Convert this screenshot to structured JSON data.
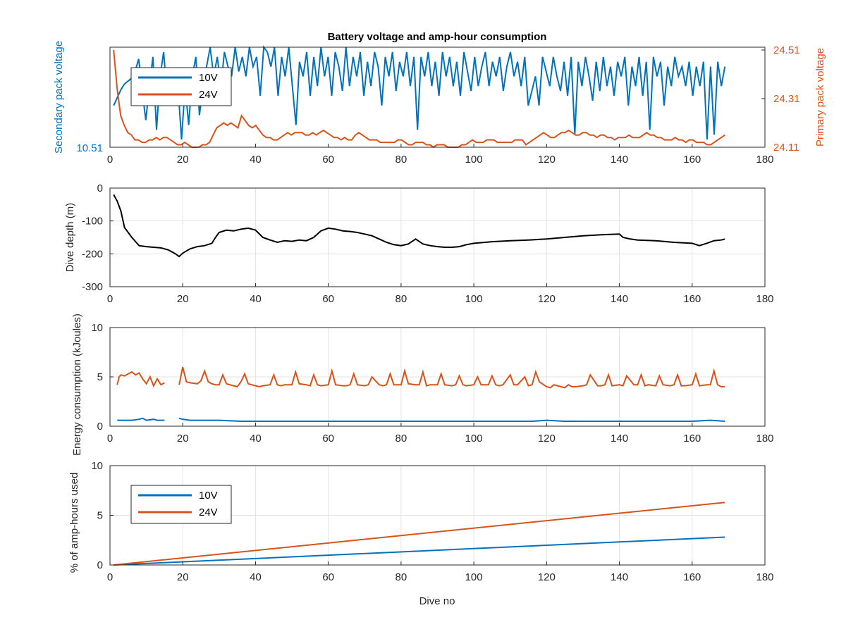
{
  "figure": {
    "title": "Battery voltage and amp-hour consumption"
  },
  "colors": {
    "blue": "#0072BD",
    "orange": "#D95319",
    "black": "#000000",
    "grid": "#e3e3e3"
  },
  "chart_data": [
    {
      "type": "line",
      "title": "Battery voltage and amp-hour consumption",
      "xlabel": "",
      "ylabel_left": "Secondary pack voltage",
      "ylabel_right": "Primary pack voltage",
      "xlim": [
        0,
        180
      ],
      "xticks": [
        "0",
        "20",
        "40",
        "60",
        "80",
        "100",
        "120",
        "140",
        "160",
        "180"
      ],
      "yticks_left": [
        "10.51"
      ],
      "yticks_right": [
        "24.51",
        "24.31",
        "24.11"
      ],
      "legend": {
        "position": "top-left",
        "entries": [
          "10V",
          "24V"
        ]
      },
      "grid": false,
      "series": [
        {
          "name": "10V",
          "axis": "left",
          "color": "#0072BD",
          "y_norm": [
            0.4,
            0.48,
            0.56,
            0.62,
            0.65,
            0.68,
            0.75,
            0.88,
            0.55,
            0.25,
            0.6,
            0.9,
            0.15,
            0.7,
            0.95,
            0.5,
            0.4,
            0.7,
            0.6,
            0.05,
            0.6,
            0.2,
            0.7,
            0.9,
            0.3,
            0.6,
            0.8,
            1.0,
            0.7,
            0.9,
            0.6,
            0.95,
            0.8,
            0.7,
            1.0,
            0.75,
            0.9,
            0.7,
            1.0,
            0.8,
            0.9,
            0.5,
            1.0,
            0.95,
            0.8,
            1.0,
            0.5,
            0.9,
            0.7,
            1.0,
            0.6,
            0.2,
            0.85,
            0.7,
            0.95,
            0.5,
            0.9,
            0.6,
            1.0,
            0.7,
            0.9,
            0.5,
            0.95,
            0.8,
            0.55,
            1.0,
            0.6,
            0.9,
            0.7,
            0.95,
            0.5,
            0.85,
            0.6,
            0.95,
            0.8,
            0.4,
            0.9,
            0.7,
            0.95,
            0.55,
            0.85,
            0.7,
            0.95,
            0.6,
            0.9,
            0.15,
            0.9,
            0.7,
            0.95,
            0.6,
            0.85,
            0.5,
            0.95,
            0.7,
            0.9,
            0.6,
            0.85,
            0.5,
            0.95,
            0.75,
            0.55,
            0.9,
            0.6,
            0.8,
            0.95,
            0.6,
            0.85,
            0.7,
            0.9,
            0.55,
            0.8,
            0.95,
            0.7,
            0.85,
            0.6,
            0.9,
            0.4,
            0.55,
            0.7,
            0.4,
            0.9,
            0.75,
            0.6,
            0.9,
            0.7,
            0.55,
            0.85,
            0.5,
            0.9,
            0.1,
            0.85,
            0.6,
            0.9,
            0.7,
            0.45,
            0.85,
            0.55,
            0.9,
            0.6,
            0.8,
            0.5,
            0.85,
            0.7,
            0.9,
            0.4,
            0.8,
            0.6,
            0.9,
            0.5,
            0.85,
            0.15,
            0.9,
            0.7,
            0.85,
            0.4,
            0.8,
            0.6,
            0.9,
            0.7,
            0.8,
            0.6,
            0.85,
            0.5,
            0.8,
            0.6,
            0.85,
            0.05,
            0.8,
            0.1,
            0.85,
            0.6,
            0.8
          ]
        },
        {
          "name": "24V",
          "axis": "right",
          "color": "#D95319",
          "y": [
            24.51,
            24.35,
            24.24,
            24.2,
            24.17,
            24.16,
            24.14,
            24.14,
            24.13,
            24.13,
            24.14,
            24.14,
            24.15,
            24.14,
            24.15,
            24.15,
            24.14,
            24.13,
            24.12,
            24.12,
            24.13,
            24.12,
            24.11,
            24.11,
            24.11,
            24.12,
            24.12,
            24.13,
            24.16,
            24.19,
            24.2,
            24.21,
            24.2,
            24.21,
            24.2,
            24.19,
            24.24,
            24.22,
            24.2,
            24.19,
            24.2,
            24.18,
            24.16,
            24.15,
            24.15,
            24.14,
            24.14,
            24.15,
            24.16,
            24.17,
            24.16,
            24.17,
            24.17,
            24.17,
            24.16,
            24.16,
            24.17,
            24.16,
            24.17,
            24.18,
            24.17,
            24.16,
            24.15,
            24.15,
            24.14,
            24.15,
            24.14,
            24.14,
            24.16,
            24.17,
            24.16,
            24.15,
            24.14,
            24.14,
            24.14,
            24.13,
            24.13,
            24.13,
            24.13,
            24.13,
            24.14,
            24.14,
            24.13,
            24.12,
            24.12,
            24.13,
            24.13,
            24.13,
            24.12,
            24.12,
            24.11,
            24.12,
            24.12,
            24.12,
            24.11,
            24.11,
            24.11,
            24.11,
            24.12,
            24.12,
            24.13,
            24.14,
            24.13,
            24.13,
            24.13,
            24.14,
            24.14,
            24.14,
            24.13,
            24.13,
            24.13,
            24.13,
            24.13,
            24.14,
            24.14,
            24.14,
            24.12,
            24.13,
            24.14,
            24.15,
            24.16,
            24.17,
            24.16,
            24.15,
            24.15,
            24.16,
            24.17,
            24.17,
            24.18,
            24.17,
            24.16,
            24.16,
            24.17,
            24.17,
            24.16,
            24.16,
            24.15,
            24.16,
            24.16,
            24.15,
            24.15,
            24.14,
            24.15,
            24.15,
            24.15,
            24.16,
            24.15,
            24.15,
            24.15,
            24.16,
            24.17,
            24.16,
            24.16,
            24.15,
            24.15,
            24.14,
            24.14,
            24.14,
            24.15,
            24.14,
            24.14,
            24.13,
            24.14,
            24.14,
            24.13,
            24.13,
            24.13,
            24.12,
            24.12,
            24.13,
            24.14,
            24.15,
            24.16
          ]
        }
      ]
    },
    {
      "type": "line",
      "title": "",
      "xlabel": "",
      "ylabel": "Dive depth (m)",
      "xlim": [
        0,
        180
      ],
      "ylim": [
        0,
        300
      ],
      "y_reversed": true,
      "xticks": [
        "0",
        "20",
        "40",
        "60",
        "80",
        "100",
        "120",
        "140",
        "160",
        "180"
      ],
      "yticks": [
        "0",
        "100",
        "200",
        "300"
      ],
      "grid": true,
      "series": [
        {
          "name": "",
          "color": "#000000",
          "x": [
            1,
            2,
            3,
            4,
            6,
            8,
            10,
            12,
            14,
            16,
            18,
            19,
            20,
            22,
            24,
            26,
            28,
            29,
            30,
            32,
            34,
            36,
            38,
            40,
            42,
            44,
            46,
            48,
            50,
            52,
            54,
            56,
            58,
            60,
            62,
            64,
            66,
            68,
            70,
            72,
            74,
            76,
            78,
            80,
            82,
            84,
            86,
            88,
            90,
            92,
            94,
            96,
            98,
            100,
            105,
            110,
            115,
            120,
            125,
            130,
            135,
            140,
            141,
            143,
            145,
            150,
            155,
            160,
            162,
            164,
            166,
            168,
            169
          ],
          "y": [
            20,
            40,
            70,
            120,
            150,
            175,
            178,
            180,
            182,
            188,
            200,
            208,
            198,
            185,
            178,
            175,
            168,
            150,
            135,
            128,
            130,
            125,
            122,
            128,
            150,
            158,
            165,
            160,
            162,
            158,
            160,
            150,
            130,
            122,
            125,
            130,
            132,
            135,
            140,
            145,
            155,
            165,
            172,
            175,
            170,
            155,
            170,
            175,
            178,
            180,
            180,
            178,
            172,
            168,
            163,
            160,
            158,
            155,
            150,
            145,
            142,
            140,
            150,
            155,
            158,
            160,
            165,
            168,
            175,
            168,
            160,
            158,
            155
          ]
        }
      ]
    },
    {
      "type": "line",
      "title": "",
      "xlabel": "",
      "ylabel": "Energy consumption (kJoules)",
      "xlim": [
        0,
        180
      ],
      "ylim": [
        0,
        10
      ],
      "xticks": [
        "0",
        "20",
        "40",
        "60",
        "80",
        "100",
        "120",
        "140",
        "160",
        "180"
      ],
      "yticks": [
        "0",
        "5",
        "10"
      ],
      "grid": true,
      "series": [
        {
          "name": "24V",
          "color": "#D95319",
          "segments": [
            {
              "x": [
                2,
                2.5,
                3,
                4,
                5,
                6,
                7,
                8,
                9,
                10,
                11,
                12,
                13,
                14,
                15
              ],
              "y": [
                4.2,
                5.0,
                5.2,
                5.1,
                5.3,
                5.5,
                5.2,
                5.4,
                4.8,
                4.3,
                5.0,
                4.1,
                4.8,
                4.2,
                4.4
              ]
            },
            {
              "x": [
                19,
                20,
                21,
                22,
                24,
                25,
                26,
                27,
                28,
                29,
                30,
                31,
                32,
                34,
                35,
                36,
                37,
                38,
                40,
                41,
                42,
                44,
                45,
                46,
                47,
                48,
                50,
                51,
                52,
                54,
                55,
                56,
                57,
                58,
                60,
                61,
                62,
                64,
                65,
                66,
                67,
                68,
                70,
                71,
                72,
                74,
                75,
                76,
                77,
                78,
                80,
                81,
                82,
                84,
                85,
                86,
                87,
                88,
                90,
                91,
                92,
                94,
                95,
                96,
                97,
                98,
                100,
                101,
                102,
                104,
                105,
                106,
                107,
                108,
                110,
                111,
                112,
                114,
                115,
                116,
                117,
                118,
                120,
                121,
                122,
                124,
                125,
                126,
                127,
                128,
                130,
                131,
                132,
                134,
                135,
                136,
                137,
                138,
                140,
                141,
                142,
                144,
                145,
                146,
                147,
                148,
                150,
                151,
                152,
                154,
                155,
                156,
                157,
                158,
                160,
                161,
                162,
                164,
                165,
                166,
                167,
                168,
                169
              ],
              "y": [
                4.2,
                6.0,
                4.5,
                4.4,
                4.3,
                4.6,
                5.6,
                4.5,
                4.3,
                4.2,
                4.2,
                5.2,
                4.3,
                4.1,
                4.0,
                4.5,
                5.3,
                4.3,
                4.1,
                4.0,
                4.1,
                4.2,
                5.2,
                4.2,
                4.1,
                4.2,
                4.2,
                5.5,
                4.3,
                4.2,
                4.1,
                5.2,
                4.2,
                4.1,
                4.2,
                5.6,
                4.2,
                4.1,
                4.1,
                4.2,
                5.3,
                4.2,
                4.1,
                4.2,
                5.0,
                4.2,
                4.1,
                4.2,
                5.3,
                4.2,
                4.2,
                5.6,
                4.3,
                4.2,
                4.2,
                5.5,
                4.1,
                4.2,
                4.2,
                5.3,
                4.2,
                4.1,
                4.2,
                5.1,
                4.2,
                4.1,
                4.2,
                5.0,
                4.2,
                4.2,
                5.1,
                4.2,
                4.1,
                4.2,
                5.2,
                4.2,
                4.2,
                5.0,
                4.1,
                4.2,
                5.5,
                4.5,
                4.0,
                3.9,
                4.2,
                4.0,
                3.9,
                4.2,
                4.0,
                4.0,
                4.1,
                4.2,
                5.2,
                4.1,
                4.1,
                4.2,
                5.2,
                4.1,
                4.2,
                4.1,
                5.1,
                4.2,
                4.2,
                5.2,
                4.1,
                4.2,
                4.1,
                5.1,
                4.2,
                4.1,
                4.2,
                5.2,
                4.1,
                4.1,
                4.2,
                5.3,
                4.1,
                4.2,
                4.2,
                5.6,
                4.2,
                4.0,
                4.0
              ]
            }
          ]
        },
        {
          "name": "10V",
          "color": "#0072BD",
          "segments": [
            {
              "x": [
                2,
                4,
                6,
                8,
                9,
                10,
                12,
                13,
                14,
                15
              ],
              "y": [
                0.6,
                0.6,
                0.6,
                0.7,
                0.8,
                0.6,
                0.7,
                0.6,
                0.6,
                0.6
              ]
            },
            {
              "x": [
                19,
                20,
                22,
                24,
                26,
                30,
                36,
                40,
                50,
                60,
                70,
                80,
                90,
                100,
                110,
                116,
                120,
                125,
                130,
                140,
                150,
                160,
                165,
                169
              ],
              "y": [
                0.8,
                0.7,
                0.6,
                0.6,
                0.6,
                0.6,
                0.5,
                0.5,
                0.5,
                0.5,
                0.5,
                0.5,
                0.5,
                0.5,
                0.5,
                0.5,
                0.6,
                0.5,
                0.5,
                0.5,
                0.5,
                0.5,
                0.6,
                0.5
              ]
            }
          ]
        }
      ]
    },
    {
      "type": "line",
      "title": "",
      "xlabel": "Dive no",
      "ylabel": "% of amp-hours used",
      "xlim": [
        0,
        180
      ],
      "ylim": [
        0,
        10
      ],
      "xticks": [
        "0",
        "20",
        "40",
        "60",
        "80",
        "100",
        "120",
        "140",
        "160",
        "180"
      ],
      "yticks": [
        "0",
        "5",
        "10"
      ],
      "grid": true,
      "legend": {
        "position": "top-left",
        "entries": [
          "10V",
          "24V"
        ]
      },
      "series": [
        {
          "name": "10V",
          "color": "#0072BD",
          "x": [
            1,
            169
          ],
          "y": [
            0.0,
            2.8
          ]
        },
        {
          "name": "24V",
          "color": "#D95319",
          "x": [
            1,
            169
          ],
          "y": [
            0.0,
            6.3
          ]
        }
      ]
    }
  ]
}
